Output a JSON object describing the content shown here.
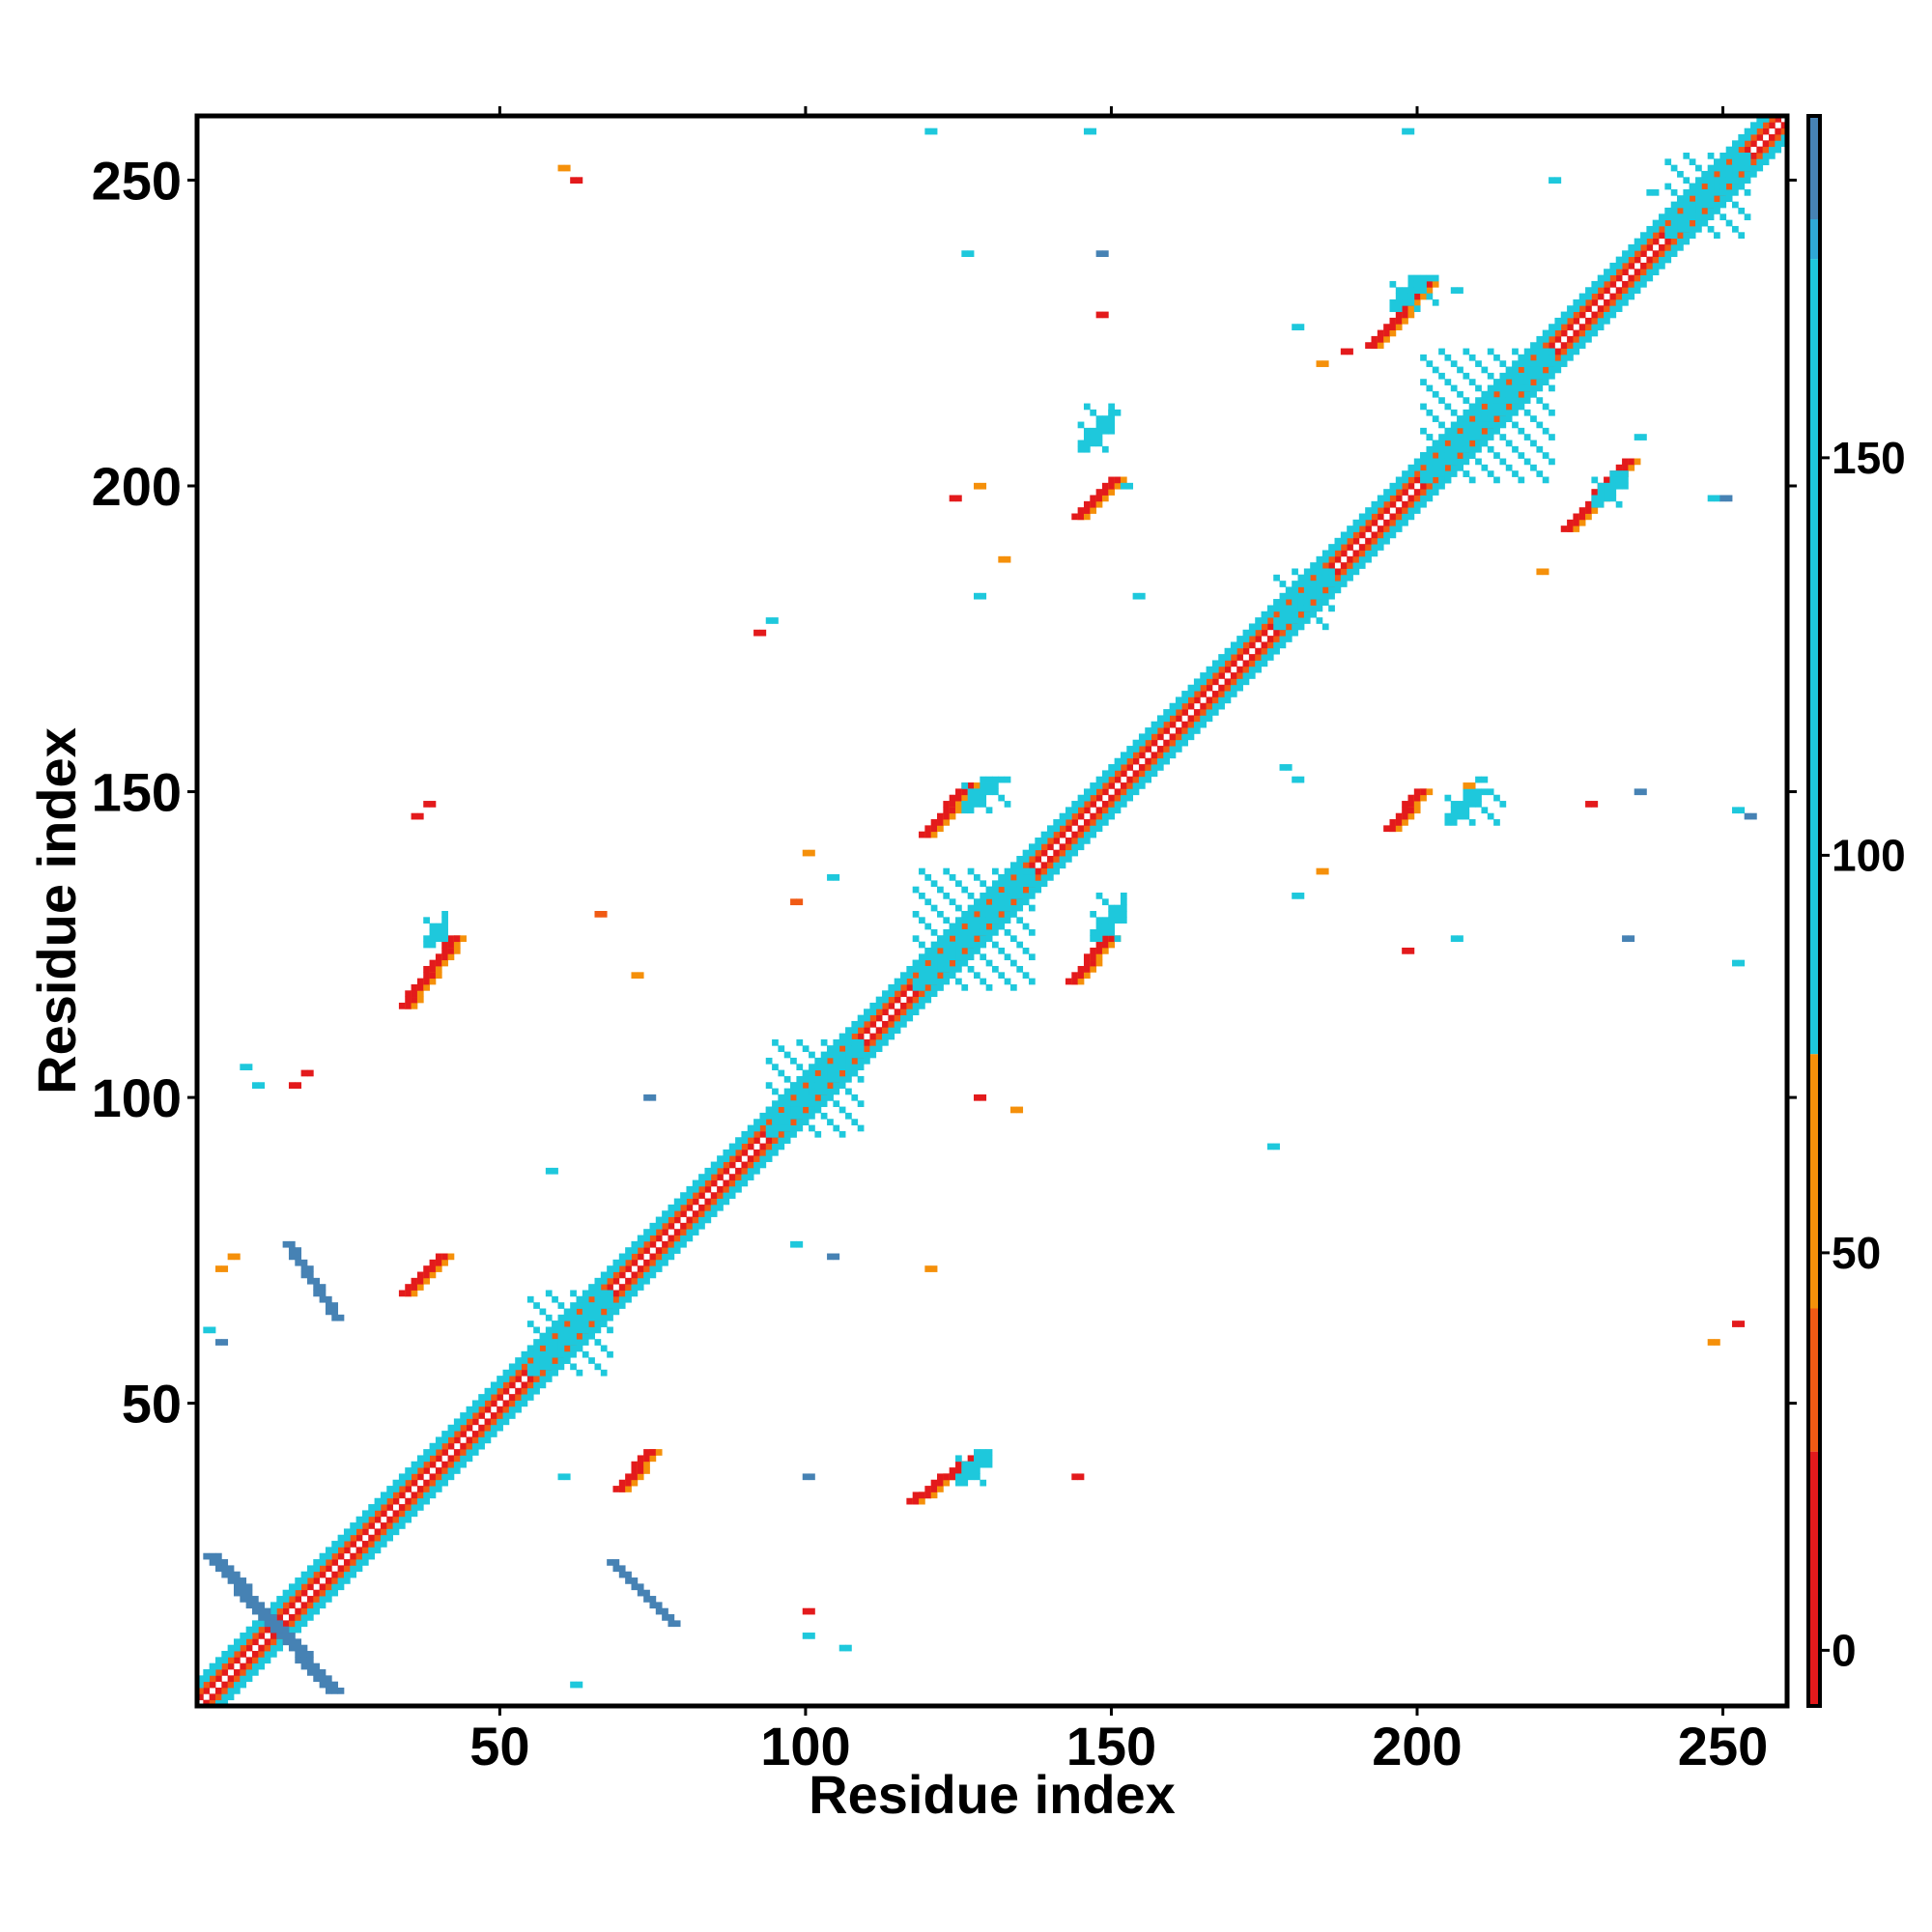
{
  "chart_data": {
    "type": "heatmap",
    "title": "",
    "xlabel": "Residue index",
    "ylabel": "Residue index",
    "xlim": [
      1,
      260
    ],
    "ylim": [
      1,
      260
    ],
    "x_ticks": [
      50,
      100,
      150,
      200,
      250
    ],
    "y_ticks": [
      50,
      100,
      150,
      200,
      250
    ],
    "colorbar": {
      "ticks": [
        0,
        50,
        100,
        150
      ],
      "range": [
        -7,
        193
      ],
      "bands": [
        {
          "from": -7,
          "to": 25,
          "color": "#e31a1c"
        },
        {
          "from": 25,
          "to": 43,
          "color": "#f05a14"
        },
        {
          "from": 43,
          "to": 75,
          "color": "#f5900a"
        },
        {
          "from": 75,
          "to": 175,
          "color": "#1ec8dc"
        },
        {
          "from": 175,
          "to": 180,
          "color": "#2fa8d6"
        },
        {
          "from": 180,
          "to": 193,
          "color": "#4682b4"
        }
      ]
    },
    "diagonal_band": {
      "from": 1,
      "to": 260
    },
    "contact_segments": [
      {
        "x1": 2,
        "y1": 25,
        "x2": 22,
        "y2": 3,
        "value": 180,
        "width": 2.5
      },
      {
        "x1": 15,
        "y1": 76,
        "x2": 23,
        "y2": 64,
        "value": 180,
        "width": 2
      },
      {
        "x1": 68,
        "y1": 24,
        "x2": 78,
        "y2": 14,
        "value": 180,
        "width": 2
      },
      {
        "x1": 34,
        "y1": 68,
        "x2": 40,
        "y2": 74,
        "value": 5,
        "width": 2
      },
      {
        "x1": 69,
        "y1": 36,
        "x2": 74,
        "y2": 42,
        "value": 5,
        "width": 2
      },
      {
        "x1": 34,
        "y1": 115,
        "x2": 42,
        "y2": 126,
        "value": 5,
        "width": 2
      },
      {
        "x1": 117,
        "y1": 34,
        "x2": 127,
        "y2": 41,
        "value": 5,
        "width": 2
      },
      {
        "x1": 119,
        "y1": 143,
        "x2": 126,
        "y2": 151,
        "value": 5,
        "width": 2
      },
      {
        "x1": 143,
        "y1": 119,
        "x2": 149,
        "y2": 126,
        "value": 5,
        "width": 2
      },
      {
        "x1": 144,
        "y1": 195,
        "x2": 150,
        "y2": 201,
        "value": 5,
        "width": 2
      },
      {
        "x1": 195,
        "y1": 144,
        "x2": 200,
        "y2": 150,
        "value": 5,
        "width": 2
      },
      {
        "x1": 192,
        "y1": 223,
        "x2": 201,
        "y2": 233,
        "value": 5,
        "width": 2
      },
      {
        "x1": 224,
        "y1": 193,
        "x2": 234,
        "y2": 204,
        "value": 5,
        "width": 2
      }
    ],
    "contact_patches": [
      {
        "x": 128,
        "y": 128,
        "w": 20,
        "h": 20,
        "value": 95
      },
      {
        "x": 212,
        "y": 212,
        "w": 22,
        "h": 22,
        "value": 95
      },
      {
        "x": 205,
        "y": 205,
        "w": 8,
        "h": 8,
        "value": 140
      },
      {
        "x": 102,
        "y": 102,
        "w": 16,
        "h": 16,
        "value": 95
      },
      {
        "x": 62,
        "y": 62,
        "w": 14,
        "h": 14,
        "value": 95
      },
      {
        "x": 182,
        "y": 182,
        "w": 10,
        "h": 10,
        "value": 95
      },
      {
        "x": 248,
        "y": 248,
        "w": 14,
        "h": 14,
        "value": 95
      },
      {
        "x": 130,
        "y": 150,
        "w": 8,
        "h": 6,
        "value": 95
      },
      {
        "x": 150,
        "y": 130,
        "w": 6,
        "h": 8,
        "value": 95
      },
      {
        "x": 200,
        "y": 232,
        "w": 8,
        "h": 6,
        "value": 95
      },
      {
        "x": 232,
        "y": 200,
        "w": 6,
        "h": 6,
        "value": 95
      },
      {
        "x": 148,
        "y": 210,
        "w": 6,
        "h": 8,
        "value": 95
      },
      {
        "x": 210,
        "y": 148,
        "w": 10,
        "h": 6,
        "value": 95
      },
      {
        "x": 40,
        "y": 128,
        "w": 4,
        "h": 6,
        "value": 95
      },
      {
        "x": 128,
        "y": 40,
        "w": 6,
        "h": 6,
        "value": 95
      }
    ],
    "scattered_contacts": [
      {
        "x": 8,
        "y": 105,
        "value": 95
      },
      {
        "x": 10,
        "y": 102,
        "value": 95
      },
      {
        "x": 16,
        "y": 102,
        "value": 5
      },
      {
        "x": 18,
        "y": 104,
        "value": 5
      },
      {
        "x": 58,
        "y": 88,
        "value": 95
      },
      {
        "x": 74,
        "y": 100,
        "value": 180
      },
      {
        "x": 72,
        "y": 120,
        "value": 60
      },
      {
        "x": 66,
        "y": 130,
        "value": 40
      },
      {
        "x": 98,
        "y": 76,
        "value": 95
      },
      {
        "x": 104,
        "y": 74,
        "value": 180
      },
      {
        "x": 120,
        "y": 72,
        "value": 60
      },
      {
        "x": 128,
        "y": 100,
        "value": 5
      },
      {
        "x": 134,
        "y": 98,
        "value": 60
      },
      {
        "x": 60,
        "y": 38,
        "value": 95
      },
      {
        "x": 100,
        "y": 38,
        "value": 180
      },
      {
        "x": 144,
        "y": 38,
        "value": 5
      },
      {
        "x": 100,
        "y": 12,
        "value": 95
      },
      {
        "x": 106,
        "y": 10,
        "value": 95
      },
      {
        "x": 100,
        "y": 16,
        "value": 5
      },
      {
        "x": 62,
        "y": 4,
        "value": 95
      },
      {
        "x": 60,
        "y": 252,
        "value": 60
      },
      {
        "x": 62,
        "y": 250,
        "value": 5
      },
      {
        "x": 38,
        "y": 148,
        "value": 5
      },
      {
        "x": 36,
        "y": 146,
        "value": 5
      },
      {
        "x": 152,
        "y": 200,
        "value": 95
      },
      {
        "x": 150,
        "y": 212,
        "value": 95
      },
      {
        "x": 132,
        "y": 188,
        "value": 60
      },
      {
        "x": 128,
        "y": 182,
        "value": 95
      },
      {
        "x": 154,
        "y": 182,
        "value": 95
      },
      {
        "x": 148,
        "y": 238,
        "value": 180
      },
      {
        "x": 148,
        "y": 228,
        "value": 5
      },
      {
        "x": 126,
        "y": 238,
        "value": 95
      },
      {
        "x": 94,
        "y": 178,
        "value": 95
      },
      {
        "x": 92,
        "y": 176,
        "value": 5
      },
      {
        "x": 128,
        "y": 200,
        "value": 60
      },
      {
        "x": 124,
        "y": 198,
        "value": 5
      },
      {
        "x": 146,
        "y": 258,
        "value": 95
      },
      {
        "x": 120,
        "y": 258,
        "value": 95
      },
      {
        "x": 198,
        "y": 258,
        "value": 95
      },
      {
        "x": 238,
        "y": 248,
        "value": 95
      },
      {
        "x": 222,
        "y": 250,
        "value": 95
      },
      {
        "x": 180,
        "y": 226,
        "value": 95
      },
      {
        "x": 188,
        "y": 222,
        "value": 5
      },
      {
        "x": 206,
        "y": 232,
        "value": 95
      },
      {
        "x": 218,
        "y": 218,
        "value": 95
      },
      {
        "x": 184,
        "y": 220,
        "value": 60
      },
      {
        "x": 220,
        "y": 186,
        "value": 60
      },
      {
        "x": 236,
        "y": 208,
        "value": 95
      },
      {
        "x": 248,
        "y": 198,
        "value": 95
      },
      {
        "x": 250,
        "y": 198,
        "value": 180
      },
      {
        "x": 178,
        "y": 154,
        "value": 95
      },
      {
        "x": 180,
        "y": 152,
        "value": 95
      },
      {
        "x": 208,
        "y": 151,
        "value": 60
      },
      {
        "x": 210,
        "y": 152,
        "value": 95
      },
      {
        "x": 228,
        "y": 148,
        "value": 5
      },
      {
        "x": 236,
        "y": 150,
        "value": 180
      },
      {
        "x": 252,
        "y": 147,
        "value": 95
      },
      {
        "x": 254,
        "y": 146,
        "value": 180
      },
      {
        "x": 180,
        "y": 133,
        "value": 95
      },
      {
        "x": 184,
        "y": 137,
        "value": 60
      },
      {
        "x": 198,
        "y": 124,
        "value": 5
      },
      {
        "x": 206,
        "y": 126,
        "value": 95
      },
      {
        "x": 234,
        "y": 126,
        "value": 180
      },
      {
        "x": 252,
        "y": 122,
        "value": 95
      },
      {
        "x": 176,
        "y": 92,
        "value": 95
      },
      {
        "x": 252,
        "y": 63,
        "value": 5
      },
      {
        "x": 248,
        "y": 60,
        "value": 60
      },
      {
        "x": 100,
        "y": 140,
        "value": 60
      },
      {
        "x": 98,
        "y": 132,
        "value": 40
      },
      {
        "x": 104,
        "y": 136,
        "value": 95
      },
      {
        "x": 4,
        "y": 72,
        "value": 60
      },
      {
        "x": 6,
        "y": 74,
        "value": 60
      },
      {
        "x": 2,
        "y": 62,
        "value": 95
      },
      {
        "x": 4,
        "y": 60,
        "value": 180
      }
    ]
  }
}
